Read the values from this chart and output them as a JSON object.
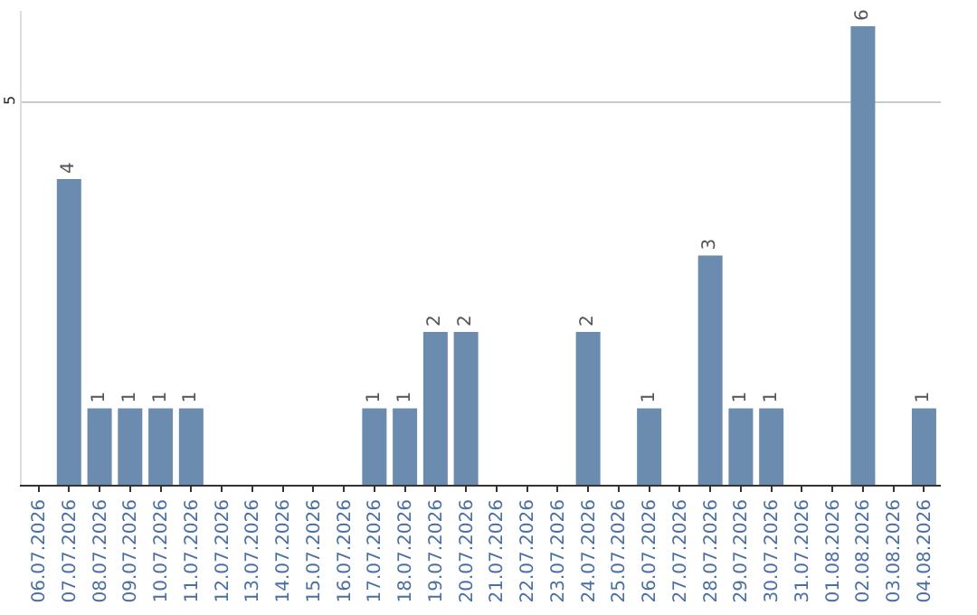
{
  "chart_data": {
    "type": "bar",
    "categories": [
      "06.07.2026",
      "07.07.2026",
      "08.07.2026",
      "09.07.2026",
      "10.07.2026",
      "11.07.2026",
      "12.07.2026",
      "13.07.2026",
      "14.07.2026",
      "15.07.2026",
      "16.07.2026",
      "17.07.2026",
      "18.07.2026",
      "19.07.2026",
      "20.07.2026",
      "21.07.2026",
      "22.07.2026",
      "23.07.2026",
      "24.07.2026",
      "25.07.2026",
      "26.07.2026",
      "27.07.2026",
      "28.07.2026",
      "29.07.2026",
      "30.07.2026",
      "31.07.2026",
      "01.08.2026",
      "02.08.2026",
      "03.08.2026",
      "04.08.2026"
    ],
    "values": [
      0,
      4,
      1,
      1,
      1,
      1,
      0,
      0,
      0,
      0,
      0,
      1,
      1,
      2,
      2,
      0,
      0,
      0,
      2,
      0,
      1,
      0,
      3,
      1,
      1,
      0,
      0,
      6,
      0,
      1
    ],
    "value_labels": [
      null,
      "4",
      "1",
      "1",
      "1",
      "1",
      null,
      null,
      null,
      null,
      null,
      "1",
      "1",
      "2",
      "2",
      null,
      null,
      null,
      "2",
      null,
      "1",
      null,
      "3",
      "1",
      "1",
      null,
      null,
      "6",
      null,
      "1"
    ],
    "color": "#6b8cae",
    "ylim": [
      0,
      6.2
    ],
    "yticks": [
      5
    ],
    "grid": "y"
  }
}
